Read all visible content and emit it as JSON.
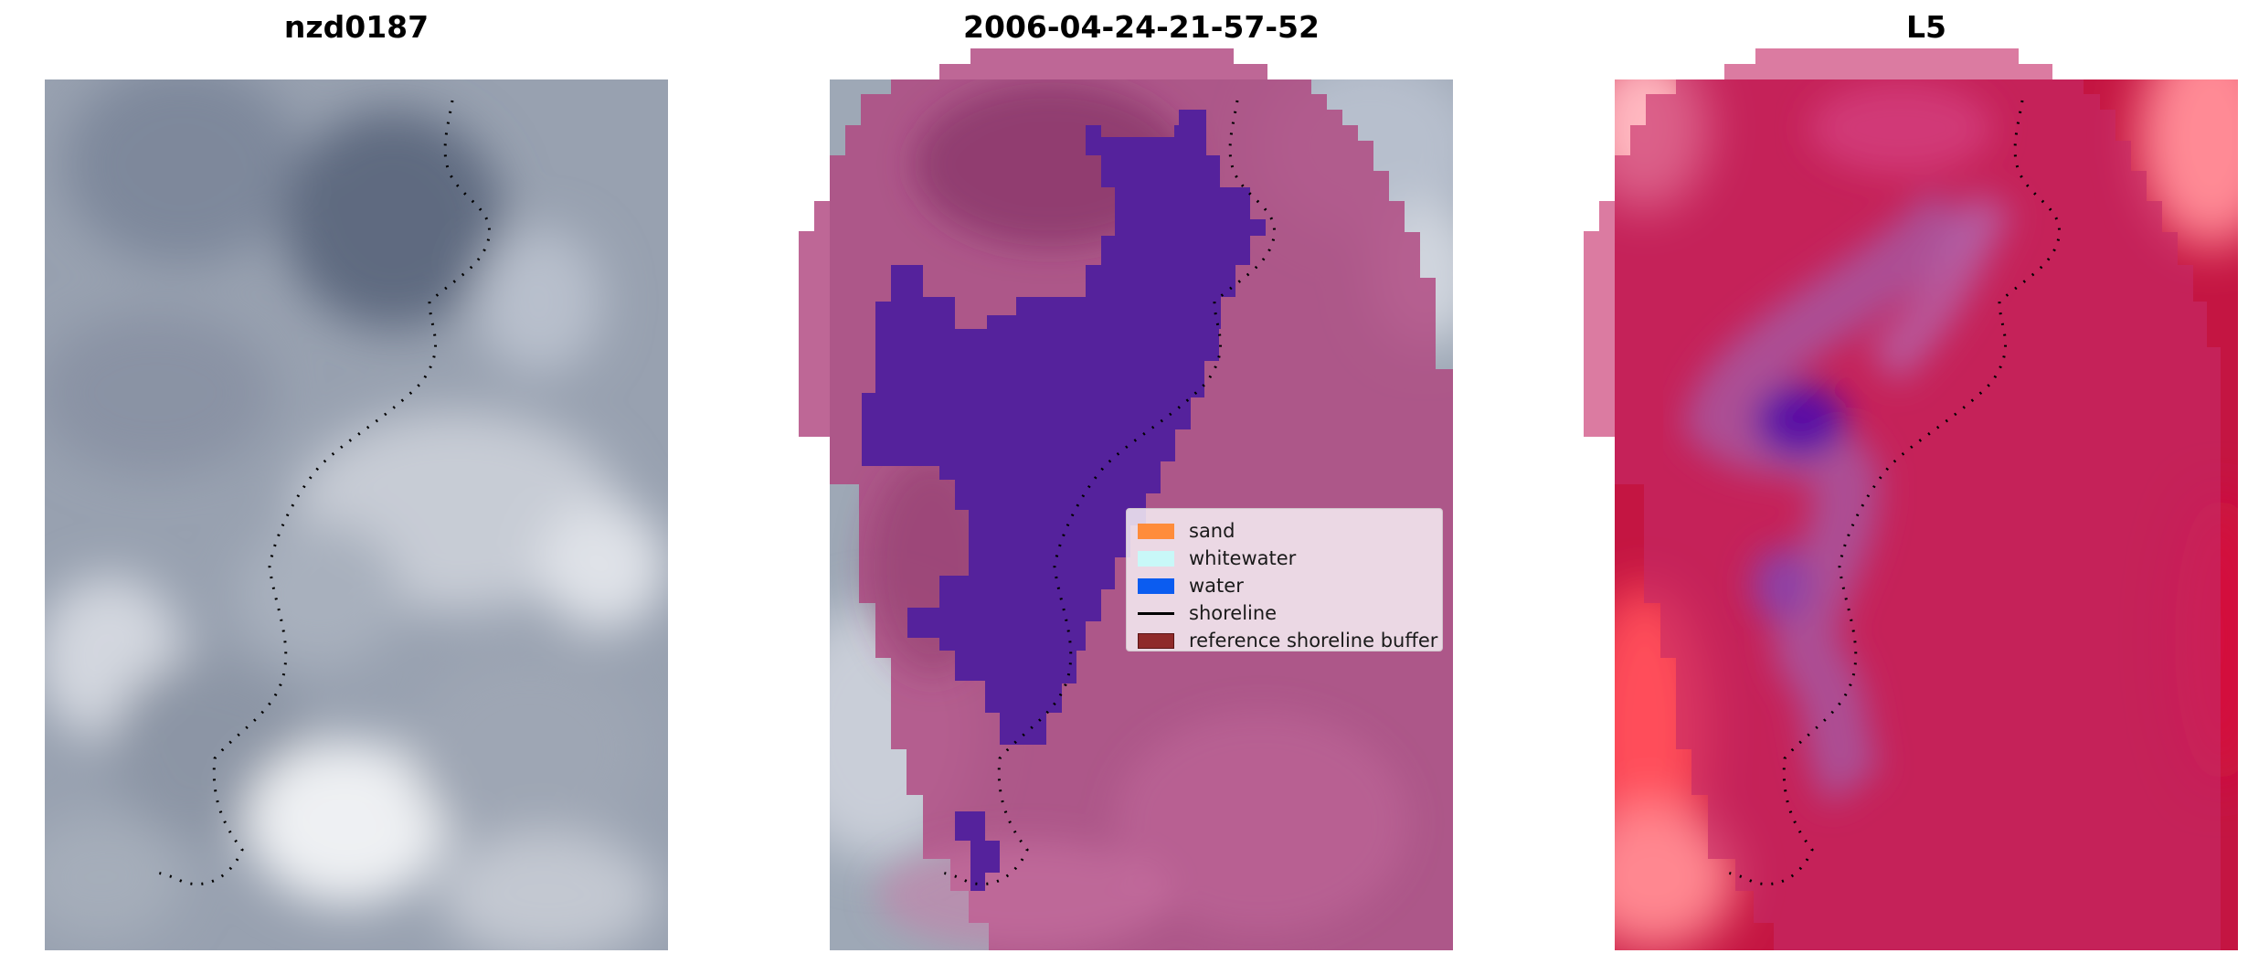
{
  "panels": [
    {
      "title": "nzd0187"
    },
    {
      "title": "2006-04-24-21-57-52"
    },
    {
      "title": "L5"
    }
  ],
  "legend": {
    "items": [
      {
        "label": "sand",
        "kind": "patch",
        "color": "#ff8c3a"
      },
      {
        "label": "whitewater",
        "kind": "patch",
        "color": "#c8f8f8"
      },
      {
        "label": "water",
        "kind": "patch",
        "color": "#0b5cf0"
      },
      {
        "label": "shoreline",
        "kind": "line",
        "color": "#000000"
      },
      {
        "label": "reference shoreline buffer",
        "kind": "patch",
        "color": "#8f2a2a"
      }
    ]
  },
  "colors": {
    "rgb_gray": "#9aa3b3",
    "buffer_overlay": "#b13f7f",
    "water_class": "#57239a",
    "index_red": "#c10d3c"
  }
}
